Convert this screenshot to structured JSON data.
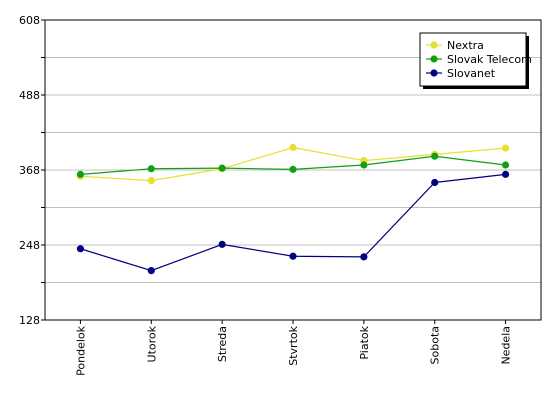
{
  "chart_data": {
    "type": "line",
    "title": "",
    "xlabel": "",
    "ylabel": "",
    "categories": [
      "Pondelok",
      "Utorok",
      "Streda",
      "Stvrtok",
      "Piatok",
      "Sobota",
      "Nedela"
    ],
    "ylim": [
      128,
      608
    ],
    "yticks": [
      128,
      248,
      368,
      488,
      608
    ],
    "grid": true,
    "legend_position": "top-right",
    "series": [
      {
        "name": "Nextra",
        "color": "#e8e030",
        "values": [
          358,
          351,
          370,
          404,
          383,
          393,
          403
        ]
      },
      {
        "name": "Slovak Telecom",
        "color": "#12a012",
        "values": [
          361,
          370,
          371,
          369,
          376,
          390,
          376
        ]
      },
      {
        "name": "Slovanet",
        "color": "#000080",
        "values": [
          242,
          207,
          249,
          230,
          229,
          348,
          361
        ]
      }
    ]
  }
}
